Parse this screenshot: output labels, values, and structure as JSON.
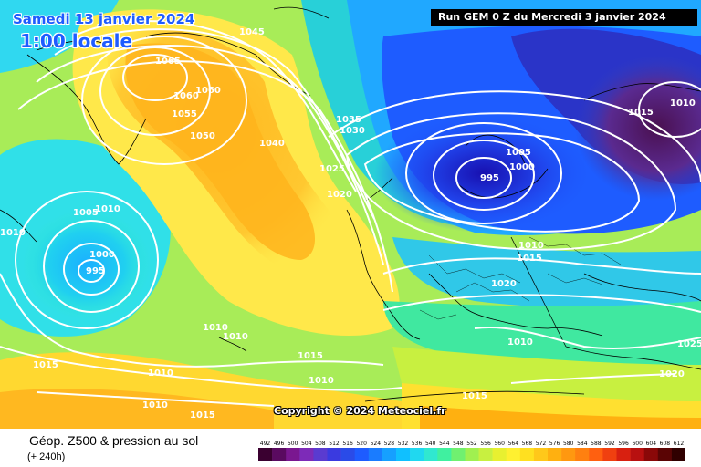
{
  "header": {
    "date_line": "Samedi 13 janvier 2024",
    "time_line": "1:00 locale",
    "run_info": "Run GEM 0 Z du Mercredi 3 janvier 2024"
  },
  "footer": {
    "title": "Géop. Z500 & pression au sol",
    "subtitle": "(+ 240h)",
    "copyright": "Copyright © 2024 Meteociel.fr"
  },
  "legend": {
    "values": [
      "492",
      "496",
      "500",
      "504",
      "508",
      "512",
      "516",
      "520",
      "524",
      "528",
      "532",
      "536",
      "540",
      "544",
      "548",
      "552",
      "556",
      "560",
      "564",
      "568",
      "572",
      "576",
      "580",
      "584",
      "588",
      "592",
      "596",
      "600",
      "604",
      "608",
      "612"
    ],
    "colors": [
      "#3a0030",
      "#5a0a60",
      "#7a1790",
      "#7d2bb8",
      "#5a3bd0",
      "#3a3ae0",
      "#2a4be8",
      "#1e5cff",
      "#1a7cff",
      "#16a0ff",
      "#10c0ff",
      "#20d8f0",
      "#30e8d0",
      "#40f0a0",
      "#70f070",
      "#a0f050",
      "#c8f040",
      "#e8f030",
      "#fff030",
      "#ffe020",
      "#ffc81a",
      "#ffb010",
      "#ff9810",
      "#ff8010",
      "#ff6010",
      "#f04010",
      "#d82010",
      "#b81010",
      "#8a0808",
      "#5a0404",
      "#300000"
    ]
  },
  "map_colors": {
    "ocean_cyan": "#30e0e8",
    "green": "#7ce870",
    "yellow": "#ffe84a",
    "orange": "#ffb820",
    "deep_blue": "#1e3ce0",
    "purple": "#5a2070"
  },
  "isobar_labels": [
    "1045",
    "1065",
    "1060",
    "1060",
    "1055",
    "1050",
    "1035",
    "1030",
    "1040",
    "1025",
    "1020",
    "1005",
    "1000",
    "995",
    "1010",
    "1015",
    "1010",
    "1020",
    "1010",
    "1015",
    "1025",
    "1020",
    "1005",
    "1010",
    "1000",
    "995",
    "1010",
    "1010",
    "1010",
    "1015",
    "1015",
    "1010",
    "1010",
    "1015",
    "1015",
    "1010"
  ]
}
